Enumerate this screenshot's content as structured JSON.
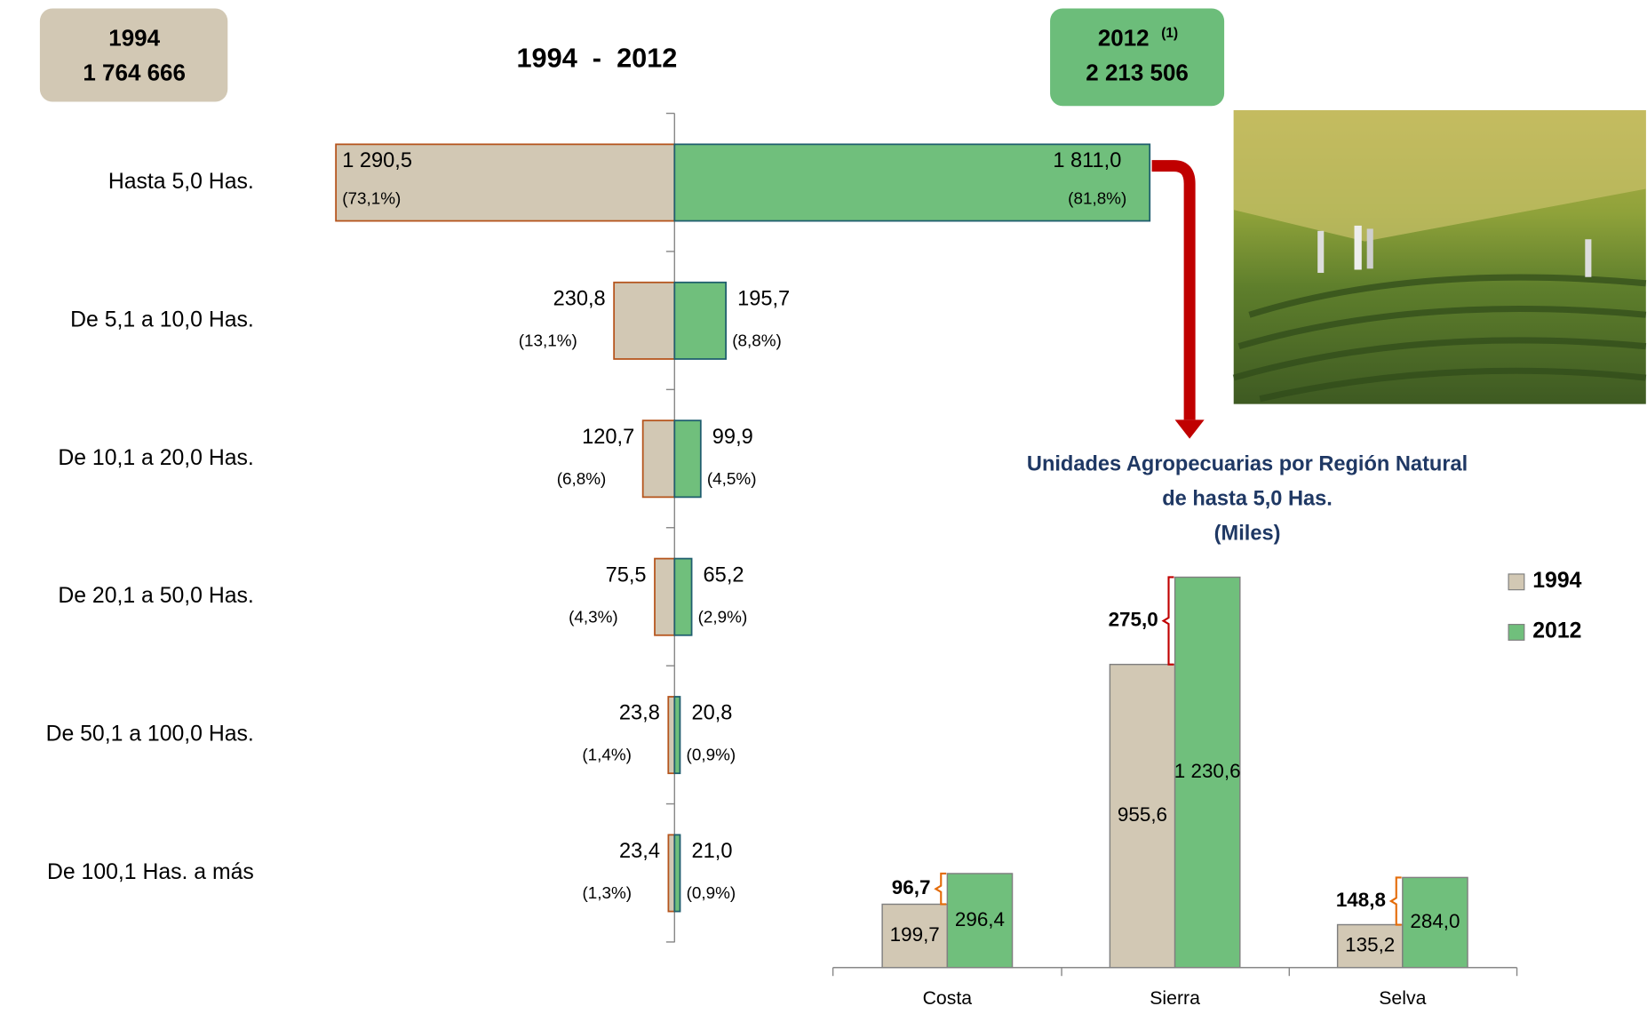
{
  "summary": [
    {
      "year": "1994",
      "total": "1 764 666"
    },
    {
      "year": "2012",
      "note": "(1)",
      "total": "2 213 506"
    }
  ],
  "chart_data": [
    {
      "type": "butterfly",
      "title": "1994  -  2012",
      "categories": [
        "Hasta 5,0 Has.",
        "De 5,1 a 10,0  Has.",
        "De 10,1 a 20,0  Has.",
        "De 20,1 a 50,0  Has.",
        "De 50,1 a 100,0  Has.",
        "De 100,1 Has. a más"
      ],
      "series": [
        {
          "name": "1994",
          "color": "#d2c8b4",
          "stroke": "#b5541c",
          "values": [
            1290.5,
            230.8,
            120.7,
            75.5,
            23.8,
            23.4
          ],
          "value_labels": [
            "1 290,5",
            "230,8",
            "120,7",
            "75,5",
            "23,8",
            "23,4"
          ],
          "share_labels": [
            "(73,1%)",
            "(13,1%)",
            "(6,8%)",
            "(4,3%)",
            "(1,4%)",
            "(1,3%)"
          ]
        },
        {
          "name": "2012",
          "color": "#70bf7c",
          "stroke": "#1f5e6e",
          "values": [
            1811.0,
            195.7,
            99.9,
            65.2,
            20.8,
            21.0
          ],
          "value_labels": [
            "1 811,0",
            "195,7",
            "99,9",
            "65,2",
            "20,8",
            "21,0"
          ],
          "share_labels": [
            "(81,8%)",
            "(8,8%)",
            "(4,5%)",
            "(2,9%)",
            "(0,9%)",
            "(0,9%)"
          ]
        }
      ]
    },
    {
      "type": "bar",
      "title": [
        "Unidades Agropecuarias por Región Natural",
        "de hasta 5,0 Has.",
        "(Miles)"
      ],
      "categories": [
        "Costa",
        "Sierra",
        "Selva"
      ],
      "series": [
        {
          "name": "1994",
          "color": "#d2c8b4",
          "values": [
            199.7,
            955.6,
            135.2
          ],
          "value_labels": [
            "199,7",
            "955,6",
            "135,2"
          ]
        },
        {
          "name": "2012",
          "color": "#70bf7c",
          "values": [
            296.4,
            1230.6,
            284.0
          ],
          "value_labels": [
            "296,4",
            "1 230,6",
            "284,0"
          ]
        }
      ],
      "differences": [
        96.7,
        275.0,
        148.8
      ],
      "difference_labels": [
        "96,7",
        "275,0",
        "148,8"
      ],
      "difference_colors": [
        "#e46c0a",
        "#c00000",
        "#e46c0a"
      ],
      "legend": "right"
    }
  ]
}
